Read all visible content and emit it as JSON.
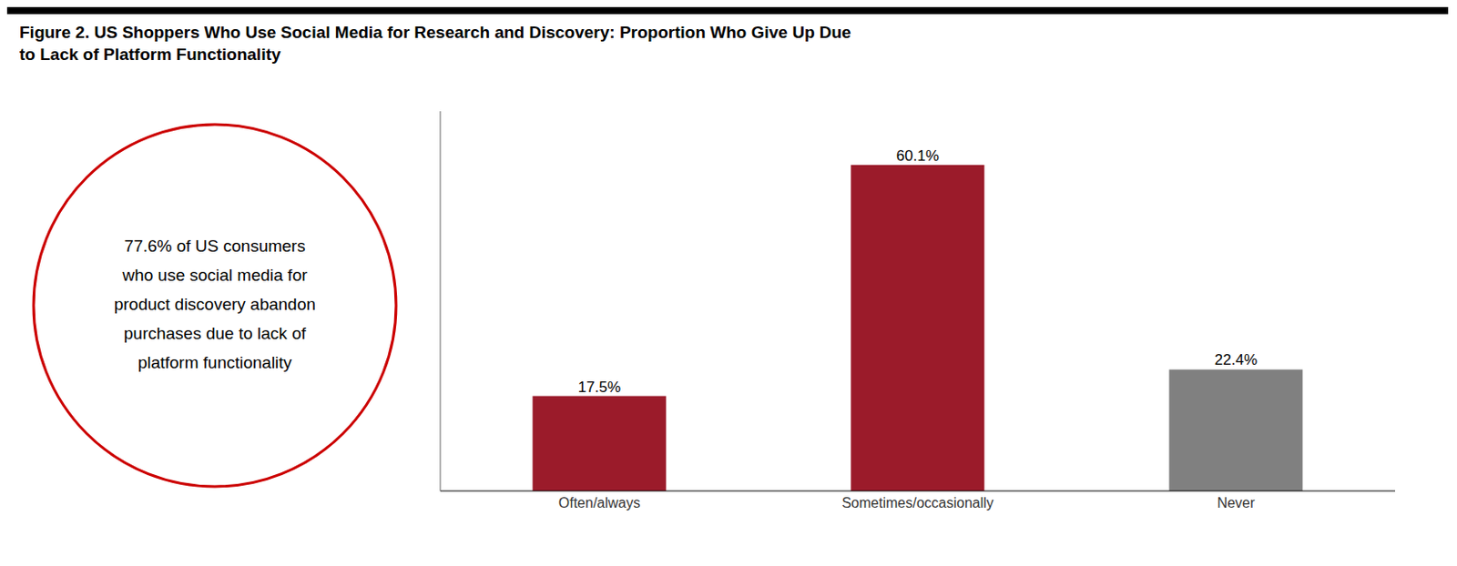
{
  "chart_data": {
    "type": "bar",
    "title": "Figure 2. US Shoppers Who Use Social Media for Research and Discovery: Proportion Who Give Up Due\nto Lack of Platform Functionality",
    "categories": [
      "Often/always",
      "Sometimes/occasionally",
      "Never"
    ],
    "values": [
      17.5,
      60.1,
      22.4
    ],
    "value_labels": [
      "17.5%",
      "60.1%",
      "22.4%"
    ],
    "colors": [
      "#9B1B2A",
      "#9B1B2A",
      "#808080"
    ],
    "ylim": [
      0,
      70
    ],
    "data_labels": true,
    "tick_labels": "x",
    "grid": false,
    "annotations": [
      {
        "text": "77.6% of US consumers\nwho use social media for\nproduct discovery abandon\npurchases due to lack of\nplatform functionality",
        "color": "#CC0000"
      }
    ]
  }
}
